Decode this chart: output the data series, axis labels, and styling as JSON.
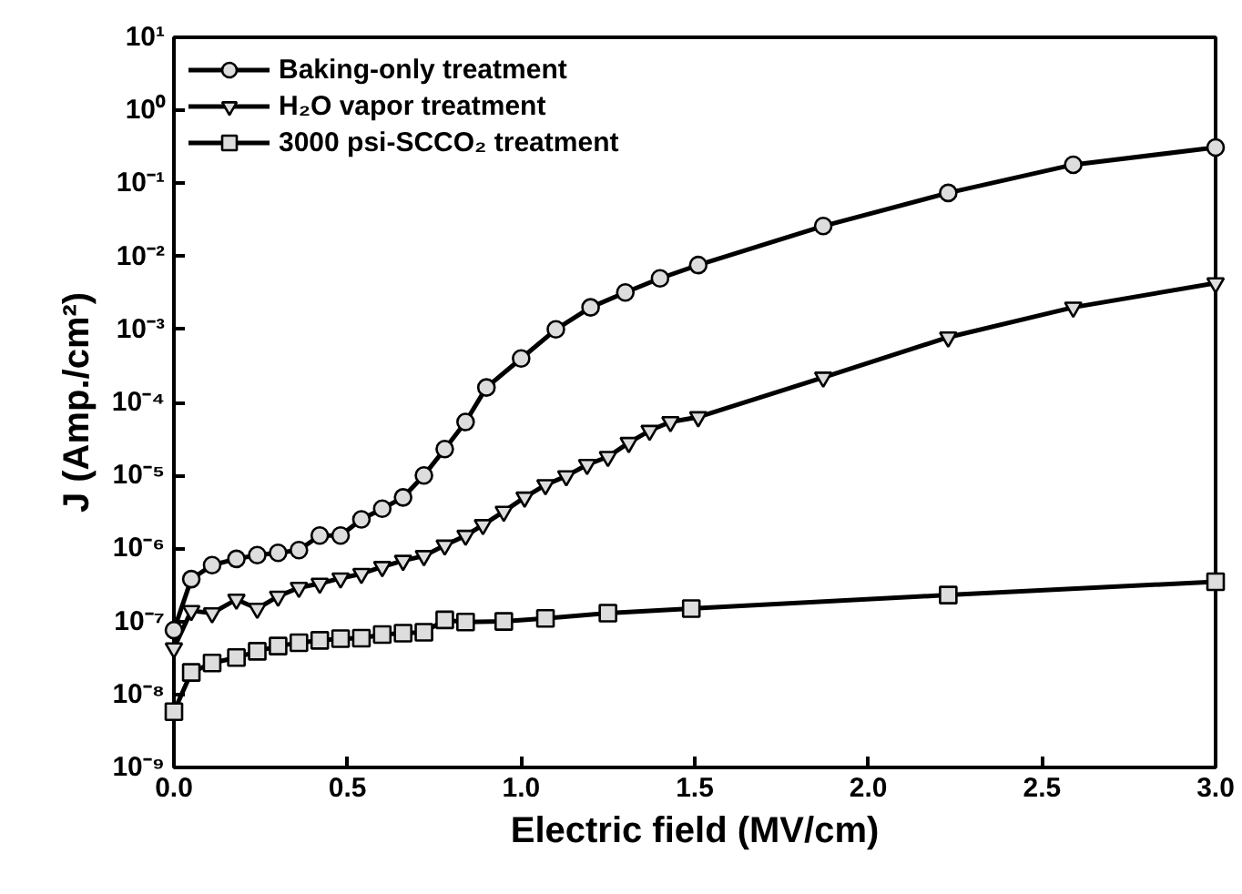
{
  "chart_data": {
    "type": "line",
    "xlabel": "Electric field (MV/cm)",
    "ylabel": "J (Amp./cm²)",
    "log": "y",
    "grid": false,
    "legend": "top left",
    "line_style": "solid",
    "xlim": [
      0,
      3
    ],
    "xticks": [
      {
        "value": 0,
        "label": "0.0"
      },
      {
        "value": 0.5,
        "label": "0.5"
      },
      {
        "value": 1,
        "label": "1.0"
      },
      {
        "value": 1.5,
        "label": "1.5"
      },
      {
        "value": 2,
        "label": "2.0"
      },
      {
        "value": 2.5,
        "label": "2.5"
      },
      {
        "value": 3,
        "label": "3.0"
      }
    ],
    "ylim": [
      1e-09,
      10
    ],
    "yticks": [
      {
        "value": 1e-09,
        "label": "10⁻⁹"
      },
      {
        "value": 1e-08,
        "label": "10⁻⁸"
      },
      {
        "value": 1e-07,
        "label": "10⁻⁷"
      },
      {
        "value": 1e-06,
        "label": "10⁻⁶"
      },
      {
        "value": 1e-05,
        "label": "10⁻⁵"
      },
      {
        "value": 0.0001,
        "label": "10⁻⁴"
      },
      {
        "value": 0.001,
        "label": "10⁻³"
      },
      {
        "value": 0.01,
        "label": "10⁻²"
      },
      {
        "value": 0.1,
        "label": "10⁻¹"
      },
      {
        "value": 1,
        "label": "10⁰"
      },
      {
        "value": 10,
        "label": "10¹"
      }
    ],
    "series": [
      {
        "name": "Baking-only treatment",
        "color": "#000000",
        "marker": "circle",
        "x": [
          0,
          0.05,
          0.11,
          0.18,
          0.24,
          0.3,
          0.36,
          0.42,
          0.48,
          0.54,
          0.6,
          0.66,
          0.72,
          0.78,
          0.84,
          0.9,
          1.0,
          1.1,
          1.2,
          1.3,
          1.4,
          1.51,
          1.87,
          2.23,
          2.59,
          3.0
        ],
        "values": [
          7.6e-08,
          3.8e-07,
          5.9e-07,
          7.2e-07,
          8.1e-07,
          8.7e-07,
          9.5e-07,
          1.5e-06,
          1.5e-06,
          2.5e-06,
          3.5e-06,
          5e-06,
          1e-05,
          2.3e-05,
          5.4e-05,
          0.00016,
          0.0004,
          0.001,
          0.002,
          0.0032,
          0.005,
          0.0076,
          0.026,
          0.074,
          0.18,
          0.31
        ]
      },
      {
        "name": "H₂O vapor treatment",
        "color": "#000000",
        "marker": "triangle",
        "x": [
          0,
          0.05,
          0.11,
          0.18,
          0.24,
          0.3,
          0.36,
          0.42,
          0.48,
          0.54,
          0.6,
          0.66,
          0.72,
          0.78,
          0.84,
          0.89,
          0.95,
          1.01,
          1.07,
          1.13,
          1.19,
          1.25,
          1.31,
          1.37,
          1.43,
          1.51,
          1.87,
          2.23,
          2.59,
          3.0
        ],
        "values": [
          4.3e-08,
          1.4e-07,
          1.3e-07,
          2e-07,
          1.5e-07,
          2.2e-07,
          2.9e-07,
          3.3e-07,
          3.9e-07,
          4.5e-07,
          5.6e-07,
          6.8e-07,
          7.9e-07,
          1.1e-06,
          1.5e-06,
          2.1e-06,
          3.2e-06,
          5e-06,
          7.4e-06,
          9.8e-06,
          1.4e-05,
          1.8e-05,
          2.8e-05,
          4.1e-05,
          5.4e-05,
          6.3e-05,
          0.00022,
          0.00078,
          0.002,
          0.0043
        ]
      },
      {
        "name": "3000 psi-SCCO₂ treatment",
        "color": "#000000",
        "marker": "square",
        "x": [
          0,
          0.05,
          0.11,
          0.18,
          0.24,
          0.3,
          0.36,
          0.42,
          0.48,
          0.54,
          0.6,
          0.66,
          0.72,
          0.78,
          0.84,
          0.95,
          1.07,
          1.25,
          1.49,
          2.23,
          3.0
        ],
        "values": [
          5.8e-09,
          2e-08,
          2.7e-08,
          3.2e-08,
          3.9e-08,
          4.6e-08,
          5.1e-08,
          5.5e-08,
          5.8e-08,
          5.9e-08,
          6.6e-08,
          6.9e-08,
          7.1e-08,
          1.05e-07,
          9.8e-08,
          1e-07,
          1.1e-07,
          1.3e-07,
          1.5e-07,
          2.3e-07,
          3.5e-07
        ]
      }
    ]
  }
}
